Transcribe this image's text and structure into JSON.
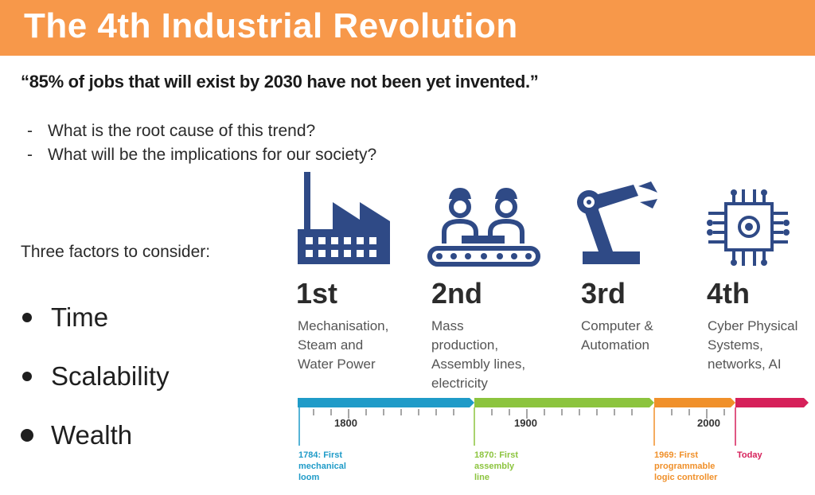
{
  "slide": {
    "title": "The 4th Industrial Revolution",
    "quote": "“85% of jobs that will exist by 2030 have not been yet invented.”",
    "questions": [
      "What is the root cause of this trend?",
      "What will be the implications for our society?"
    ],
    "factors_intro": "Three factors to consider:",
    "factors": [
      "Time",
      "Scalability",
      "Wealth"
    ]
  },
  "revolutions": [
    {
      "ordinal": "1st",
      "lines": [
        "Mechanisation,",
        "Steam and",
        "Water Power"
      ],
      "icon": "factory-icon"
    },
    {
      "ordinal": "2nd",
      "lines": [
        "Mass",
        "production,",
        "Assembly lines,",
        "electricity"
      ],
      "icon": "workers-conveyor-icon"
    },
    {
      "ordinal": "3rd",
      "lines": [
        "Computer &",
        "Automation"
      ],
      "icon": "robot-arm-icon"
    },
    {
      "ordinal": "4th",
      "lines": [
        "Cyber Physical",
        "Systems,",
        "networks, AI"
      ],
      "icon": "circuit-chip-icon"
    }
  ],
  "timeline": {
    "years": [
      "1800",
      "1900",
      "2000"
    ],
    "events": [
      {
        "lines": [
          "1784: First",
          "mechanical",
          "loom"
        ],
        "color": "#1f9bc8"
      },
      {
        "lines": [
          "1870: First",
          "assembly",
          "line"
        ],
        "color": "#8cc43e"
      },
      {
        "lines": [
          "1969: First",
          "programmable",
          "logic controller"
        ],
        "color": "#f0902a"
      },
      {
        "lines": [
          "Today"
        ],
        "color": "#d6205a"
      }
    ]
  },
  "colors": {
    "title_bar": "#f7984a",
    "icon_blue": "#2f4a86"
  }
}
